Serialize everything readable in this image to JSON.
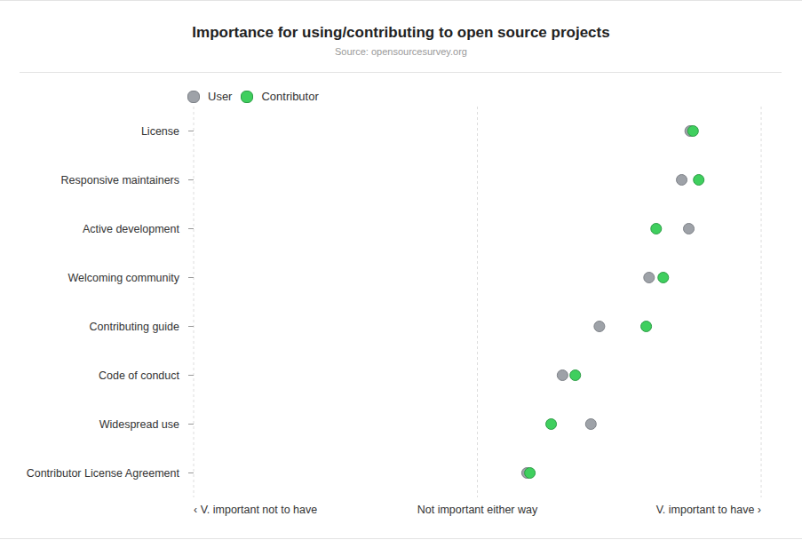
{
  "chart_data": {
    "type": "scatter",
    "title": "Importance for using/contributing to open source projects",
    "subtitle": "Source: opensourcesurvey.org",
    "categories": [
      "License",
      "Responsive maintainers",
      "Active development",
      "Welcoming community",
      "Contributing guide",
      "Code of conduct",
      "Widespread use",
      "Contributor License Agreement"
    ],
    "series": [
      {
        "name": "User",
        "color": "#9ea2a8",
        "values": [
          1.5,
          1.44,
          1.49,
          1.21,
          0.86,
          0.6,
          0.8,
          0.35
        ]
      },
      {
        "name": "Contributor",
        "color": "#3fcf5e",
        "values": [
          1.52,
          1.56,
          1.26,
          1.31,
          1.19,
          0.69,
          0.52,
          0.37
        ]
      }
    ],
    "xlim": [
      -2,
      2
    ],
    "xticks": [
      {
        "value": -2,
        "label": "‹ V. important not to have"
      },
      {
        "value": 0,
        "label": "Not important either way"
      },
      {
        "value": 2,
        "label": "V. important to have ›"
      }
    ],
    "grid": true,
    "legend": "top left"
  }
}
